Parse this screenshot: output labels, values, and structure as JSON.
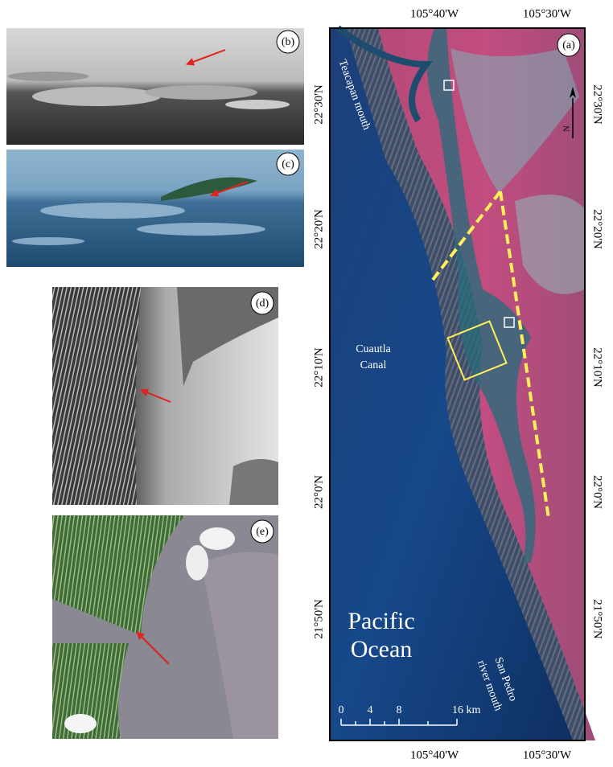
{
  "panels": [
    "(a)",
    "(b)",
    "(c)",
    "(d)",
    "(e)"
  ],
  "map": {
    "lon_labels": [
      "105°40'W",
      "105°30'W"
    ],
    "lat_labels": [
      "22°30'N",
      "22°20'N",
      "22°10'N",
      "22°0'N",
      "21°50'N"
    ],
    "places": {
      "teacapan": "Teacapan mouth",
      "cuautla": [
        "Cuautla",
        "Canal"
      ],
      "pacific": [
        "Pacific",
        "Ocean"
      ],
      "san_pedro": [
        "San Pedro",
        "river mouth"
      ]
    },
    "scale": [
      "0",
      "4",
      "8",
      "16 km"
    ],
    "north": "N"
  }
}
